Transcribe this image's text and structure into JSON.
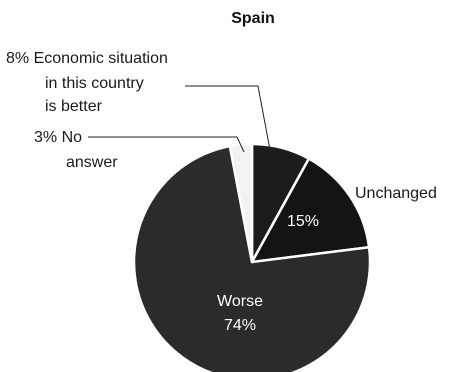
{
  "chart_data": {
    "type": "pie",
    "title": "Spain",
    "slices": [
      {
        "label_lines": [
          "8% Economic situation",
          "in this country",
          "is better"
        ],
        "value": 8,
        "color": "#1c1c1c"
      },
      {
        "label_lines": [
          "Unchanged"
        ],
        "value_label": "15%",
        "value": 15,
        "color": "#141414"
      },
      {
        "label_lines": [
          "Worse"
        ],
        "value_label": "74%",
        "value": 74,
        "color": "#2b2b2b"
      },
      {
        "label_lines": [
          "3% No",
          "answer"
        ],
        "value": 3,
        "color": "#f2f2f2"
      }
    ],
    "start_angle_deg": 0,
    "direction": "clockwise",
    "legend": "none"
  }
}
